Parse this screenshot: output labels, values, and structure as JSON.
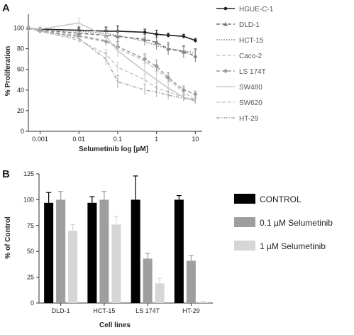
{
  "panels": [
    "A",
    "B"
  ],
  "chart_data": [
    {
      "type": "line",
      "panel": "A",
      "title": "",
      "xlabel": "Selumetinib log [µM]",
      "ylabel": "% Proliferation",
      "xscale": "log",
      "xlim": [
        0.0005,
        15
      ],
      "ylim": [
        0,
        110
      ],
      "x_ticks": [
        "0.001",
        "0.01",
        "0.1",
        "1",
        "10"
      ],
      "y_ticks": [
        "0",
        "20",
        "40",
        "60",
        "80",
        "100"
      ],
      "legend_position": "right",
      "x": [
        0.0005,
        0.001,
        0.01,
        0.05,
        0.1,
        0.5,
        1,
        2,
        5,
        10
      ],
      "series": [
        {
          "name": "HGUE-C-1",
          "color": "#222222",
          "dash": "",
          "marker": "circle",
          "values": [
            100,
            99,
            98,
            97,
            97,
            96,
            94,
            93,
            92,
            88
          ],
          "err": [
            2,
            2,
            3,
            4,
            5,
            3,
            4,
            2,
            2,
            2
          ]
        },
        {
          "name": "DLD-1",
          "color": "#777777",
          "dash": "5,3",
          "marker": "triangle",
          "values": [
            100,
            98,
            95,
            93,
            92,
            89,
            86,
            80,
            77,
            73
          ],
          "err": [
            2,
            2,
            4,
            5,
            6,
            5,
            5,
            6,
            6,
            6
          ]
        },
        {
          "name": "HCT-15",
          "color": "#888888",
          "dash": "1.5,2",
          "marker": "",
          "values": [
            100,
            98,
            97,
            95,
            93,
            87,
            83,
            80,
            78,
            76
          ],
          "err": [
            2,
            2,
            3,
            4,
            4,
            4,
            4,
            4,
            4,
            4
          ]
        },
        {
          "name": "Caco-2",
          "color": "#c8c8c8",
          "dash": "5,3",
          "marker": "",
          "values": [
            100,
            97,
            93,
            88,
            80,
            68,
            60,
            50,
            38,
            30
          ],
          "err": [
            2,
            2,
            3,
            4,
            5,
            5,
            5,
            5,
            4,
            3
          ]
        },
        {
          "name": "LS 174T",
          "color": "#9a9a9a",
          "dash": "5,3",
          "marker": "diamond",
          "values": [
            100,
            97,
            92,
            87,
            82,
            70,
            63,
            52,
            40,
            36
          ],
          "err": [
            2,
            2,
            3,
            4,
            5,
            5,
            6,
            5,
            4,
            3
          ]
        },
        {
          "name": "SW480",
          "color": "#c8c8c8",
          "dash": "",
          "marker": "",
          "values": [
            100,
            99,
            105,
            92,
            78,
            58,
            50,
            42,
            33,
            30
          ],
          "err": [
            2,
            2,
            4,
            4,
            6,
            8,
            8,
            6,
            4,
            3
          ]
        },
        {
          "name": "SW620",
          "color": "#cccccc",
          "dash": "5,3",
          "marker": "",
          "values": [
            100,
            97,
            88,
            75,
            62,
            50,
            42,
            38,
            33,
            29
          ],
          "err": [
            2,
            2,
            3,
            4,
            5,
            5,
            5,
            4,
            3,
            3
          ]
        },
        {
          "name": "HT-29",
          "color": "#aaaaaa",
          "dash": "5,2,1.5,2",
          "marker": "",
          "values": [
            100,
            97,
            90,
            70,
            48,
            40,
            38,
            35,
            32,
            30
          ],
          "err": [
            2,
            2,
            3,
            6,
            6,
            5,
            5,
            4,
            3,
            3
          ]
        }
      ]
    },
    {
      "type": "bar",
      "panel": "B",
      "title": "",
      "xlabel": "Cell lines",
      "ylabel": "% of Control",
      "ylim": [
        0,
        125
      ],
      "y_ticks": [
        "0",
        "25",
        "50",
        "75",
        "100",
        "125"
      ],
      "legend_position": "right",
      "categories": [
        "DLD-1",
        "HCT-15",
        "LS 174T",
        "HT-29"
      ],
      "series": [
        {
          "name": "CONTROL",
          "color": "#000000",
          "values": [
            97,
            97,
            100,
            100
          ],
          "err": [
            10,
            6,
            23,
            4
          ]
        },
        {
          "name": "0.1 µM Selumetinib",
          "color": "#9e9e9e",
          "values": [
            100,
            100,
            43,
            41
          ],
          "err": [
            8,
            8,
            5,
            5
          ]
        },
        {
          "name": "1 µM Selumetinib",
          "color": "#d6d6d6",
          "values": [
            70,
            76,
            19,
            1
          ],
          "err": [
            6,
            8,
            5,
            0.5
          ]
        }
      ]
    }
  ]
}
